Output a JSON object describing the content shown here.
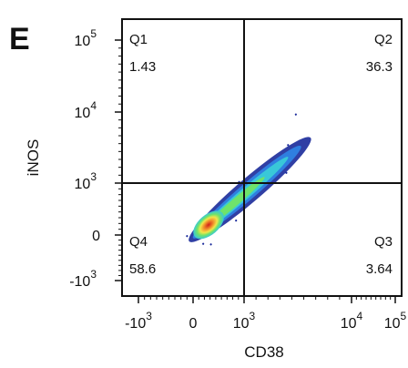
{
  "panel_label": "E",
  "chart_data": {
    "type": "scatter",
    "subtype": "flow-cytometry-density-plot",
    "xlabel": "CD38",
    "ylabel": "iNOS",
    "x_scale": "biexponential",
    "y_scale": "biexponential",
    "x_ticks": [
      {
        "base": "-10",
        "exp": "3",
        "value": -1000
      },
      {
        "base": "0",
        "exp": "",
        "value": 0
      },
      {
        "base": "10",
        "exp": "3",
        "value": 1000
      },
      {
        "base": "10",
        "exp": "4",
        "value": 10000
      },
      {
        "base": "10",
        "exp": "5",
        "value": 100000
      }
    ],
    "y_ticks": [
      {
        "base": "10",
        "exp": "5",
        "value": 100000
      },
      {
        "base": "10",
        "exp": "4",
        "value": 10000
      },
      {
        "base": "10",
        "exp": "3",
        "value": 1000
      },
      {
        "base": "0",
        "exp": "",
        "value": 0
      },
      {
        "base": "-10",
        "exp": "3",
        "value": -1000
      }
    ],
    "gate": {
      "x": 1000,
      "y": 1000
    },
    "quadrants": [
      {
        "name": "Q1",
        "percent": "1.43",
        "position": "top-left"
      },
      {
        "name": "Q2",
        "percent": "36.3",
        "position": "top-right"
      },
      {
        "name": "Q3",
        "percent": "3.64",
        "position": "bottom-right"
      },
      {
        "name": "Q4",
        "percent": "58.6",
        "position": "bottom-left"
      }
    ],
    "population": {
      "shape": "diagonal elongated cluster",
      "density_center": {
        "x": 250,
        "y": 150
      },
      "extends_to": {
        "x": 6000,
        "y": 6000
      },
      "colormap": [
        "#1a2a9a",
        "#2f7fe0",
        "#39c8d8",
        "#6fe36a",
        "#f2e64a",
        "#f08a2a",
        "#d0201a"
      ]
    }
  }
}
